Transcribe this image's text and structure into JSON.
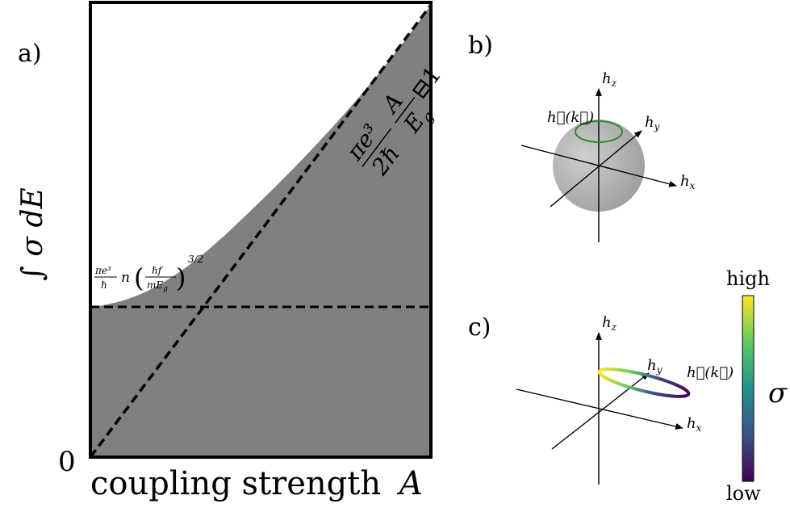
{
  "panel_a": {
    "panel_label": "a)",
    "ylabel": "∫ σ dE",
    "xlabel_text": "coupling strength",
    "xlabel_symbol": "A",
    "zero_tick": "0",
    "annotation_lower": {
      "prefactor_num": "πe³",
      "prefactor_den": "ℏ",
      "variable": "n",
      "paren_num": "ℏf",
      "paren_den": "mE",
      "paren_den_sub": "g",
      "exponent": "3/2"
    },
    "annotation_upper": {
      "prefactor_num": "πe³",
      "prefactor_den": "2ℏ",
      "fraction_num": "A",
      "fraction_den": "E",
      "fraction_den_sub": "g",
      "trailing": "⊟1"
    },
    "colors": {
      "fill": "#808080",
      "frame": "#000000",
      "dash": "#000000"
    }
  },
  "panel_b": {
    "panel_label": "b)",
    "axis_x": "h",
    "axis_x_sub": "x",
    "axis_y": "h",
    "axis_y_sub": "y",
    "axis_z": "h",
    "axis_z_sub": "z",
    "loop_label": "h⃗(k⃗)",
    "colors": {
      "sphere": "#bcbcbc",
      "loop": "#2e8b2e"
    }
  },
  "panel_c": {
    "panel_label": "c)",
    "axis_x": "h",
    "axis_x_sub": "x",
    "axis_y": "h",
    "axis_y_sub": "y",
    "axis_z": "h",
    "axis_z_sub": "z",
    "loop_label": "h⃗(k⃗)",
    "colorbar_high": "high",
    "colorbar_low": "low",
    "colorbar_symbol": "σ",
    "colors": {
      "viridis_high": "#fde725",
      "viridis_mid": "#21918c",
      "viridis_low": "#440154"
    }
  }
}
